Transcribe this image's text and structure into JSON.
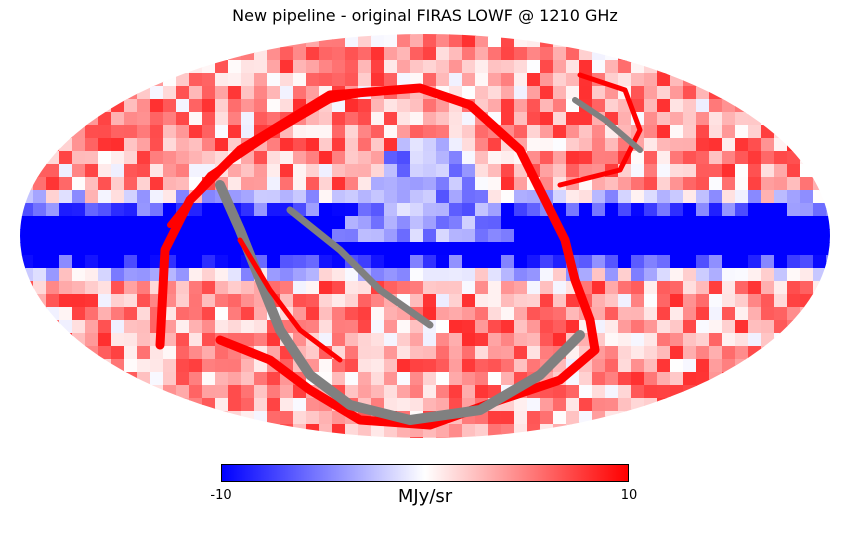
{
  "title": "New pipeline - original FIRAS LOWF @ 1210 GHz",
  "chart_data": {
    "type": "heatmap",
    "projection": "mollweide",
    "title": "New pipeline - original FIRAS LOWF @ 1210 GHz",
    "colormap": "bwr",
    "colors": {
      "low": "#0000ff",
      "mid": "#ffffff",
      "high": "#ff0000",
      "masked": "#808080"
    },
    "colorbar": {
      "min": -10,
      "max": 10,
      "min_label": "-10",
      "max_label": "10",
      "unit": "MJy/sr"
    }
  }
}
